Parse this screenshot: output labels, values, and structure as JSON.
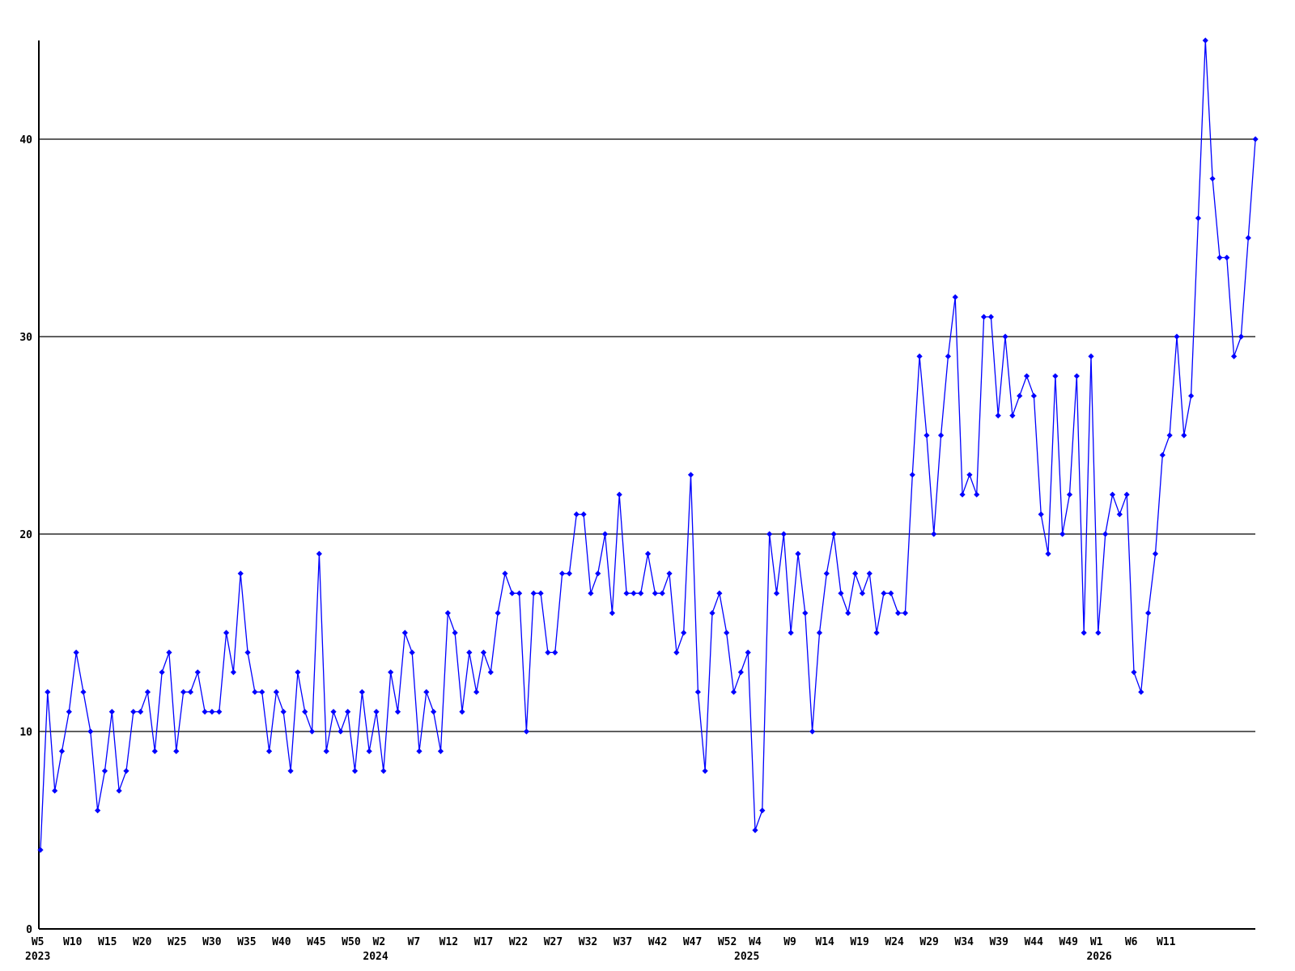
{
  "page": {
    "title": "",
    "background_color": "#ffffff",
    "text_color": "#000000"
  },
  "chart_data": {
    "type": "line",
    "title": "",
    "xlabel": "",
    "ylabel": "",
    "frequency": "weekly",
    "start_week_label": "W5 2023",
    "line_color": "#0000ff",
    "marker": "diamond",
    "grid_color": "#000000",
    "axis_color": "#000000",
    "legend": "none",
    "ylim": [
      0,
      46
    ],
    "y_ticks": [
      0,
      10,
      20,
      30,
      40
    ],
    "values": [
      4,
      12,
      7,
      9,
      11,
      14,
      12,
      10,
      6,
      8,
      11,
      7,
      8,
      11,
      11,
      12,
      9,
      13,
      14,
      9,
      12,
      12,
      13,
      11,
      11,
      11,
      15,
      13,
      18,
      14,
      12,
      12,
      9,
      12,
      11,
      8,
      13,
      11,
      10,
      19,
      9,
      11,
      10,
      11,
      8,
      12,
      9,
      11,
      8,
      13,
      11,
      15,
      14,
      9,
      12,
      11,
      9,
      16,
      15,
      11,
      14,
      12,
      14,
      13,
      16,
      18,
      17,
      17,
      10,
      17,
      17,
      14,
      14,
      18,
      18,
      21,
      21,
      17,
      18,
      20,
      16,
      22,
      17,
      17,
      17,
      19,
      17,
      17,
      18,
      14,
      15,
      23,
      12,
      8,
      16,
      17,
      15,
      12,
      13,
      14,
      5,
      6,
      20,
      17,
      20,
      15,
      19,
      16,
      10,
      15,
      18,
      20,
      17,
      16,
      18,
      17,
      18,
      15,
      17,
      17,
      16,
      16,
      23,
      29,
      25,
      20,
      25,
      29,
      32,
      22,
      23,
      22,
      31,
      31,
      26,
      30,
      26,
      27,
      28,
      27,
      21,
      19,
      28,
      20,
      22,
      28,
      15,
      29,
      15,
      20,
      22,
      21,
      22,
      13,
      12,
      16,
      19,
      24,
      25,
      30,
      25,
      27,
      36,
      45,
      38,
      34,
      34,
      29,
      30,
      35,
      40
    ],
    "x_tick_labels": [
      {
        "week_index": 0,
        "label": "W5"
      },
      {
        "week_index": 5,
        "label": "W10"
      },
      {
        "week_index": 10,
        "label": "W15"
      },
      {
        "week_index": 15,
        "label": "W20"
      },
      {
        "week_index": 20,
        "label": "W25"
      },
      {
        "week_index": 25,
        "label": "W30"
      },
      {
        "week_index": 30,
        "label": "W35"
      },
      {
        "week_index": 35,
        "label": "W40"
      },
      {
        "week_index": 40,
        "label": "W45"
      },
      {
        "week_index": 45,
        "label": "W50"
      },
      {
        "week_index": 49,
        "label": "W2"
      },
      {
        "week_index": 54,
        "label": "W7"
      },
      {
        "week_index": 59,
        "label": "W12"
      },
      {
        "week_index": 64,
        "label": "W17"
      },
      {
        "week_index": 69,
        "label": "W22"
      },
      {
        "week_index": 74,
        "label": "W27"
      },
      {
        "week_index": 79,
        "label": "W32"
      },
      {
        "week_index": 84,
        "label": "W37"
      },
      {
        "week_index": 89,
        "label": "W42"
      },
      {
        "week_index": 94,
        "label": "W47"
      },
      {
        "week_index": 99,
        "label": "W52"
      },
      {
        "week_index": 103,
        "label": "W4"
      },
      {
        "week_index": 108,
        "label": "W9"
      },
      {
        "week_index": 113,
        "label": "W14"
      },
      {
        "week_index": 118,
        "label": "W19"
      },
      {
        "week_index": 123,
        "label": "W24"
      },
      {
        "week_index": 128,
        "label": "W29"
      },
      {
        "week_index": 133,
        "label": "W34"
      },
      {
        "week_index": 138,
        "label": "W39"
      },
      {
        "week_index": 143,
        "label": "W44"
      },
      {
        "week_index": 148,
        "label": "W49"
      },
      {
        "week_index": 152,
        "label": "W1"
      },
      {
        "week_index": 157,
        "label": "W6"
      },
      {
        "week_index": 162,
        "label": "W11"
      }
    ],
    "year_labels": [
      {
        "anchor_week_index": 0,
        "label": "2023"
      },
      {
        "anchor_week_index": 48.5,
        "label": "2024"
      },
      {
        "anchor_week_index": 101.8,
        "label": "2025"
      },
      {
        "anchor_week_index": 152.4,
        "label": "2026"
      }
    ]
  }
}
